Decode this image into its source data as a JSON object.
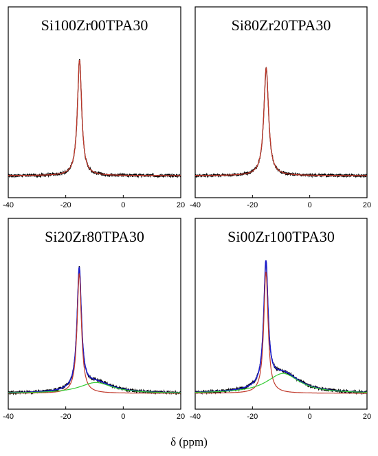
{
  "figure": {
    "xlabel": "δ (ppm)"
  },
  "chart_data": [
    {
      "type": "line",
      "title": "Si100Zr00TPA30",
      "xlim": [
        -40,
        20
      ],
      "x_ticks": [
        "-40",
        "-20",
        "0",
        "20"
      ],
      "x_tick_values": [
        -40,
        -20,
        0,
        20
      ],
      "ylim": [
        0,
        1
      ],
      "baseline": 0.0,
      "peaks": [
        {
          "center": -15.2,
          "height": 1.0,
          "width": 0.9
        }
      ],
      "series": [
        {
          "color": "#000000",
          "role": "experimental"
        },
        {
          "color": "#c0392b",
          "role": "fit"
        }
      ]
    },
    {
      "type": "line",
      "title": "Si80Zr20TPA30",
      "xlim": [
        -40,
        20
      ],
      "x_ticks": [
        "-40",
        "-20",
        "0",
        "20"
      ],
      "x_tick_values": [
        -40,
        -20,
        0,
        20
      ],
      "ylim": [
        0,
        1
      ],
      "baseline": 0.0,
      "peaks": [
        {
          "center": -15.2,
          "height": 0.97,
          "width": 1.0
        }
      ],
      "series": [
        {
          "color": "#000000",
          "role": "experimental"
        },
        {
          "color": "#c0392b",
          "role": "fit"
        }
      ]
    },
    {
      "type": "line",
      "title": "Si20Zr80TPA30",
      "xlim": [
        -40,
        20
      ],
      "x_ticks": [
        "-40",
        "-20",
        "0",
        "20"
      ],
      "x_tick_values": [
        -40,
        -20,
        0,
        20
      ],
      "ylim": [
        0,
        1
      ],
      "baseline": 0.0,
      "peaks": [
        {
          "center": -15.3,
          "height": 1.0,
          "width": 0.9,
          "color": "#c0392b"
        },
        {
          "center": -9.5,
          "height": 0.09,
          "width": 7.0,
          "color": "#33cc33"
        }
      ],
      "series": [
        {
          "color": "#000000",
          "role": "experimental"
        },
        {
          "color": "#c0392b",
          "role": "component-1"
        },
        {
          "color": "#33cc33",
          "role": "component-2"
        },
        {
          "color": "#1a1acc",
          "role": "sum"
        }
      ]
    },
    {
      "type": "line",
      "title": "Si00Zr100TPA30",
      "xlim": [
        -40,
        20
      ],
      "x_ticks": [
        "-40",
        "-20",
        "0",
        "20"
      ],
      "x_tick_values": [
        -40,
        -20,
        0,
        20
      ],
      "ylim": [
        0,
        1
      ],
      "baseline": 0.0,
      "peaks": [
        {
          "center": -15.3,
          "height": 0.98,
          "width": 0.9,
          "color": "#c0392b"
        },
        {
          "center": -9.3,
          "height": 0.16,
          "width": 7.0,
          "color": "#33cc33"
        }
      ],
      "series": [
        {
          "color": "#000000",
          "role": "experimental"
        },
        {
          "color": "#c0392b",
          "role": "component-1"
        },
        {
          "color": "#33cc33",
          "role": "component-2"
        },
        {
          "color": "#1a1acc",
          "role": "sum"
        }
      ]
    }
  ]
}
